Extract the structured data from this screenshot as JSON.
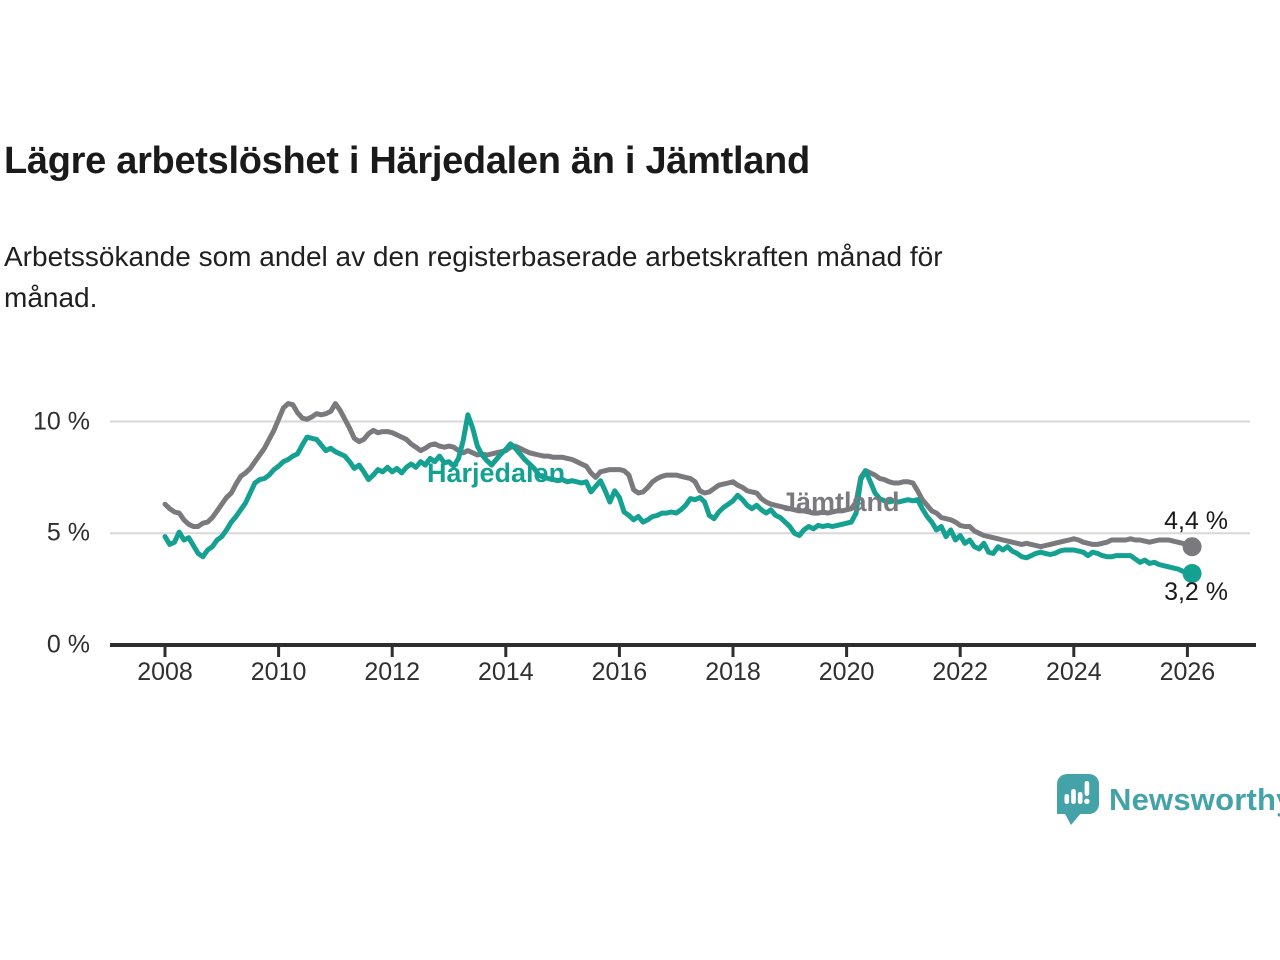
{
  "header": {
    "title": "Lägre arbetslöshet i Härjedalen än i Jämtland",
    "subtitle": "Arbetssökande som andel av den registerbaserade arbetskraften månad för månad."
  },
  "chart_data": {
    "type": "line",
    "title": "Lägre arbetslöshet i Härjedalen än i Jämtland",
    "subtitle": "Arbetssökande som andel av den registerbaserade arbetskraften månad för månad.",
    "x_start_year": 2008,
    "x_interval": "monthly",
    "x_ticks": [
      2008,
      2010,
      2012,
      2014,
      2016,
      2018,
      2020,
      2022,
      2024,
      2026
    ],
    "ylim": [
      0,
      12
    ],
    "y_ticks": [
      {
        "value": 0,
        "label": "0 %"
      },
      {
        "value": 5,
        "label": "5 %"
      },
      {
        "value": 10,
        "label": "10 %"
      }
    ],
    "y_gridlines": [
      5,
      10
    ],
    "grid": true,
    "legend_position": "inline-labels",
    "colors": {
      "jamtland": "#7a797e",
      "harjedalen": "#14a192",
      "axis": "#2e2e2e",
      "gridline": "#d8d8d8"
    },
    "series": [
      {
        "name": "Jämtland",
        "color": "#7a797e",
        "end_label": "4,4 %",
        "end_value": 4.4,
        "values": [
          6.3,
          6.1,
          5.95,
          5.9,
          5.6,
          5.4,
          5.3,
          5.3,
          5.45,
          5.5,
          5.7,
          6.0,
          6.3,
          6.6,
          6.8,
          7.2,
          7.55,
          7.7,
          7.9,
          8.2,
          8.5,
          8.8,
          9.2,
          9.6,
          10.1,
          10.6,
          10.8,
          10.75,
          10.4,
          10.15,
          10.1,
          10.2,
          10.35,
          10.3,
          10.35,
          10.45,
          10.8,
          10.5,
          10.1,
          9.7,
          9.25,
          9.1,
          9.2,
          9.45,
          9.6,
          9.5,
          9.55,
          9.55,
          9.5,
          9.4,
          9.3,
          9.2,
          9.0,
          8.85,
          8.7,
          8.8,
          8.95,
          9.0,
          8.9,
          8.85,
          8.9,
          8.85,
          8.7,
          8.6,
          8.7,
          8.6,
          8.5,
          8.55,
          8.5,
          8.55,
          8.6,
          8.65,
          8.7,
          8.85,
          8.9,
          8.8,
          8.7,
          8.6,
          8.55,
          8.5,
          8.45,
          8.45,
          8.4,
          8.4,
          8.4,
          8.35,
          8.3,
          8.2,
          8.1,
          8.0,
          7.7,
          7.5,
          7.75,
          7.8,
          7.85,
          7.85,
          7.85,
          7.8,
          7.6,
          6.95,
          6.8,
          6.85,
          7.05,
          7.3,
          7.45,
          7.55,
          7.6,
          7.6,
          7.6,
          7.55,
          7.5,
          7.45,
          7.3,
          6.9,
          6.8,
          6.85,
          7.0,
          7.15,
          7.2,
          7.25,
          7.3,
          7.15,
          7.05,
          6.9,
          6.85,
          6.8,
          6.55,
          6.4,
          6.3,
          6.25,
          6.2,
          6.15,
          6.1,
          6.05,
          6.0,
          6.0,
          5.95,
          5.9,
          5.9,
          5.95,
          5.9,
          5.95,
          6.0,
          6.0,
          6.05,
          6.1,
          6.4,
          7.5,
          7.8,
          7.7,
          7.6,
          7.45,
          7.4,
          7.3,
          7.25,
          7.25,
          7.3,
          7.3,
          7.25,
          6.9,
          6.5,
          6.25,
          6.0,
          5.9,
          5.7,
          5.65,
          5.6,
          5.5,
          5.35,
          5.3,
          5.3,
          5.1,
          5.0,
          4.9,
          4.85,
          4.8,
          4.75,
          4.7,
          4.65,
          4.6,
          4.55,
          4.5,
          4.55,
          4.5,
          4.45,
          4.4,
          4.45,
          4.5,
          4.55,
          4.6,
          4.65,
          4.7,
          4.75,
          4.7,
          4.6,
          4.55,
          4.5,
          4.5,
          4.55,
          4.6,
          4.7,
          4.7,
          4.7,
          4.7,
          4.75,
          4.7,
          4.7,
          4.65,
          4.6,
          4.65,
          4.7,
          4.7,
          4.7,
          4.65,
          4.6,
          4.55,
          4.5,
          4.4
        ]
      },
      {
        "name": "Härjedalen",
        "color": "#14a192",
        "end_label": "3,2 %",
        "end_value": 3.2,
        "values": [
          4.85,
          4.5,
          4.6,
          5.05,
          4.7,
          4.8,
          4.45,
          4.1,
          3.95,
          4.25,
          4.4,
          4.7,
          4.85,
          5.15,
          5.5,
          5.75,
          6.05,
          6.35,
          6.8,
          7.25,
          7.4,
          7.45,
          7.6,
          7.85,
          8.0,
          8.2,
          8.3,
          8.45,
          8.55,
          8.95,
          9.3,
          9.25,
          9.2,
          8.95,
          8.7,
          8.8,
          8.65,
          8.55,
          8.45,
          8.2,
          7.9,
          8.05,
          7.75,
          7.4,
          7.6,
          7.85,
          7.75,
          7.95,
          7.75,
          7.9,
          7.7,
          7.95,
          8.1,
          7.95,
          8.2,
          8.05,
          8.35,
          8.2,
          8.45,
          8.15,
          8.2,
          8.0,
          8.35,
          9.15,
          10.3,
          9.7,
          8.9,
          8.5,
          8.25,
          8.05,
          8.3,
          8.55,
          8.75,
          9.0,
          8.8,
          8.55,
          8.3,
          8.1,
          7.9,
          7.6,
          7.5,
          7.45,
          7.4,
          7.35,
          7.4,
          7.3,
          7.35,
          7.3,
          7.25,
          7.3,
          6.85,
          7.1,
          7.35,
          6.9,
          6.4,
          6.9,
          6.6,
          5.95,
          5.8,
          5.6,
          5.75,
          5.5,
          5.6,
          5.75,
          5.8,
          5.9,
          5.9,
          5.95,
          5.9,
          6.05,
          6.25,
          6.55,
          6.5,
          6.6,
          6.4,
          5.8,
          5.65,
          5.95,
          6.15,
          6.3,
          6.45,
          6.7,
          6.5,
          6.25,
          6.1,
          6.25,
          6.05,
          5.9,
          6.05,
          5.8,
          5.7,
          5.5,
          5.3,
          5.0,
          4.9,
          5.15,
          5.3,
          5.2,
          5.35,
          5.3,
          5.35,
          5.3,
          5.35,
          5.4,
          5.45,
          5.5,
          5.9,
          7.4,
          7.8,
          7.3,
          6.8,
          6.55,
          6.45,
          6.4,
          6.45,
          6.4,
          6.45,
          6.5,
          6.45,
          6.5,
          6.1,
          5.75,
          5.5,
          5.15,
          5.3,
          4.85,
          5.15,
          4.7,
          4.9,
          4.55,
          4.7,
          4.4,
          4.3,
          4.55,
          4.15,
          4.1,
          4.4,
          4.25,
          4.4,
          4.2,
          4.1,
          3.95,
          3.9,
          4.0,
          4.1,
          4.15,
          4.1,
          4.05,
          4.1,
          4.2,
          4.25,
          4.25,
          4.25,
          4.2,
          4.15,
          4.0,
          4.15,
          4.1,
          4.0,
          3.95,
          3.95,
          4.0,
          4.0,
          4.0,
          4.0,
          3.85,
          3.7,
          3.8,
          3.65,
          3.7,
          3.6,
          3.55,
          3.5,
          3.45,
          3.4,
          3.3,
          3.25,
          3.2
        ]
      }
    ]
  },
  "footer": {
    "brand": "Newsworthy",
    "logo_color": "#44a3a9"
  }
}
